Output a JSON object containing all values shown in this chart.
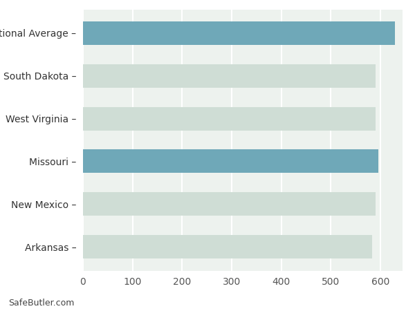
{
  "categories": [
    "Arkansas",
    "New Mexico",
    "Missouri",
    "West Virginia",
    "South Dakota",
    "National Average"
  ],
  "values": [
    584,
    590,
    596,
    590,
    591,
    630
  ],
  "bar_colors": [
    "#cfddd5",
    "#cfddd5",
    "#6fa8b8",
    "#cfddd5",
    "#cfddd5",
    "#6fa8b8"
  ],
  "xlim": [
    0,
    645
  ],
  "xticks": [
    0,
    100,
    200,
    300,
    400,
    500,
    600
  ],
  "axes_facecolor": "#edf2ee",
  "fig_facecolor": "#ffffff",
  "grid_color": "#ffffff",
  "bar_height": 0.55,
  "footnote": "SafeButler.com",
  "tick_labelsize": 10,
  "footnote_fontsize": 9
}
